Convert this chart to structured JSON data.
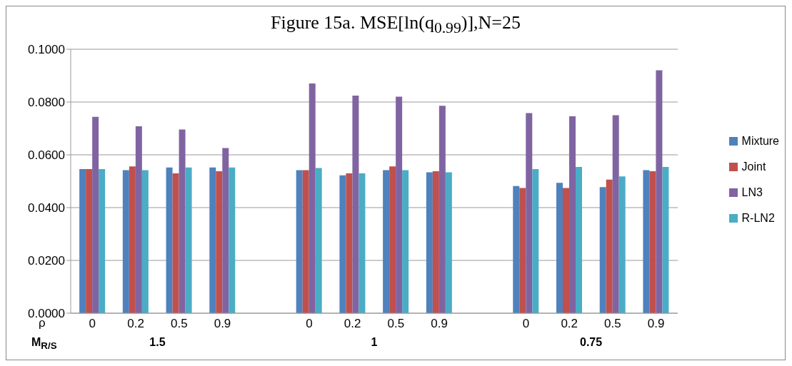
{
  "chart_data": {
    "type": "bar",
    "title": "Figure 15a.  MSE[ln(q$_{0.99}$)],N=25",
    "categories": [
      "0",
      "0.2",
      "0.5",
      "0.9",
      null,
      "0",
      "0.2",
      "0.5",
      "0.9",
      null,
      "0",
      "0.2",
      "0.5",
      "0.9"
    ],
    "series": [
      {
        "name": "Mixture",
        "color": "#4f81bd",
        "values": [
          0.0546,
          0.0542,
          0.0552,
          0.0552,
          null,
          0.0542,
          0.0522,
          0.0542,
          0.0534,
          null,
          0.0482,
          0.0494,
          0.0478,
          0.0542
        ]
      },
      {
        "name": "Joint",
        "color": "#c0504d",
        "values": [
          0.0546,
          0.0556,
          0.053,
          0.0538,
          null,
          0.0542,
          0.053,
          0.0556,
          0.0538,
          null,
          0.0474,
          0.0474,
          0.0506,
          0.0538
        ]
      },
      {
        "name": "LN3",
        "color": "#8064a2",
        "values": [
          0.0744,
          0.0708,
          0.0696,
          0.0626,
          null,
          0.087,
          0.0824,
          0.082,
          0.0786,
          null,
          0.0758,
          0.0746,
          0.075,
          0.092
        ]
      },
      {
        "name": "R-LN2",
        "color": "#4bacc6",
        "values": [
          0.0546,
          0.0542,
          0.0552,
          0.0552,
          null,
          0.055,
          0.053,
          0.0542,
          0.0534,
          null,
          0.0546,
          0.0554,
          0.0518,
          0.0554
        ]
      }
    ],
    "ylim": [
      0,
      0.1
    ],
    "yticks": [
      {
        "value": 0,
        "label": "0.0000"
      },
      {
        "value": 0.02,
        "label": "0.0200"
      },
      {
        "value": 0.04,
        "label": "0.0400"
      },
      {
        "value": 0.06,
        "label": "0.0600"
      },
      {
        "value": 0.08,
        "label": "0.0800"
      },
      {
        "value": 0.1,
        "label": "0.1000"
      }
    ],
    "grid": "y",
    "legend": "right",
    "annotations": [
      "ρ",
      "M$_{R/S}$",
      "1.5",
      "1",
      "0.75"
    ]
  }
}
